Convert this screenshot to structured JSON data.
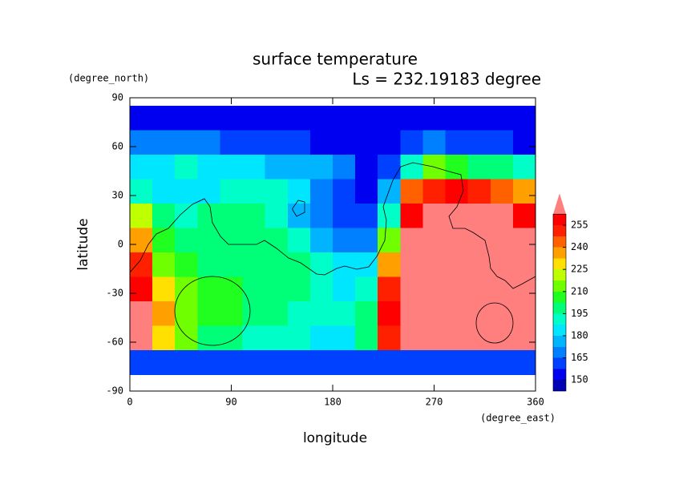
{
  "chart_data": {
    "type": "contour",
    "title": "surface temperature",
    "subtitle": "Ls = 232.19183 degree",
    "x_label": "longitude",
    "x_unit": "(degree_east)",
    "y_label": "latitude",
    "y_unit": "(degree_north)",
    "xlim": [
      0,
      360
    ],
    "xticks": [
      0,
      90,
      180,
      270,
      360
    ],
    "ylim": [
      -90,
      90
    ],
    "yticks": [
      -90,
      -60,
      -30,
      0,
      30,
      60,
      90
    ],
    "x": [
      10,
      30,
      50,
      70,
      90,
      110,
      130,
      150,
      170,
      190,
      210,
      230,
      250,
      270,
      290,
      310,
      330,
      350
    ],
    "y": [
      77.5,
      62.5,
      47.5,
      32.5,
      17.5,
      2.5,
      -12.5,
      -27.5,
      -42.5,
      -57.5,
      -72.5
    ],
    "z": [
      [
        150,
        150,
        150,
        150,
        150,
        150,
        150,
        150,
        150,
        150,
        150,
        150,
        150,
        150,
        150,
        150,
        150,
        150
      ],
      [
        165,
        168,
        168,
        165,
        162,
        160,
        160,
        158,
        155,
        152,
        150,
        150,
        160,
        165,
        162,
        160,
        158,
        155
      ],
      [
        185,
        185,
        188,
        185,
        183,
        180,
        178,
        178,
        175,
        165,
        150,
        160,
        190,
        210,
        205,
        200,
        195,
        190
      ],
      [
        190,
        185,
        180,
        185,
        190,
        192,
        188,
        180,
        170,
        160,
        155,
        175,
        240,
        250,
        255,
        250,
        245,
        235
      ],
      [
        220,
        195,
        190,
        195,
        200,
        195,
        188,
        175,
        165,
        160,
        160,
        190,
        255,
        270,
        270,
        270,
        270,
        260
      ],
      [
        235,
        205,
        200,
        200,
        200,
        198,
        195,
        190,
        175,
        165,
        170,
        215,
        265,
        272,
        272,
        272,
        272,
        272
      ],
      [
        250,
        215,
        205,
        200,
        200,
        200,
        198,
        195,
        190,
        180,
        180,
        235,
        270,
        272,
        272,
        272,
        272,
        272
      ],
      [
        262,
        230,
        212,
        205,
        205,
        200,
        198,
        195,
        190,
        185,
        190,
        250,
        272,
        272,
        272,
        272,
        272,
        272
      ],
      [
        268,
        235,
        215,
        205,
        205,
        198,
        195,
        192,
        190,
        188,
        195,
        255,
        272,
        272,
        272,
        272,
        272,
        272
      ],
      [
        265,
        230,
        210,
        200,
        195,
        192,
        190,
        188,
        186,
        186,
        195,
        250,
        268,
        270,
        270,
        270,
        270,
        268
      ],
      [
        158,
        158,
        158,
        158,
        158,
        158,
        158,
        158,
        158,
        158,
        158,
        158,
        158,
        158,
        158,
        158,
        158,
        158
      ]
    ],
    "levels": [
      142.5,
      150,
      157.5,
      165,
      172.5,
      180,
      187.5,
      195,
      202.5,
      210,
      217.5,
      225,
      232.5,
      240,
      247.5,
      255,
      262.5
    ],
    "colors": [
      "#0000b4",
      "#0000f0",
      "#0040ff",
      "#0080ff",
      "#00b4ff",
      "#00e6ff",
      "#00ffc8",
      "#00ff78",
      "#20ff20",
      "#70ff00",
      "#c0ff00",
      "#ffe000",
      "#ffa000",
      "#ff6000",
      "#ff2000",
      "#ff0000"
    ],
    "over_color": "#ff7f7f",
    "colorbar_ticks": [
      150,
      165,
      180,
      195,
      210,
      225,
      240,
      255
    ]
  }
}
